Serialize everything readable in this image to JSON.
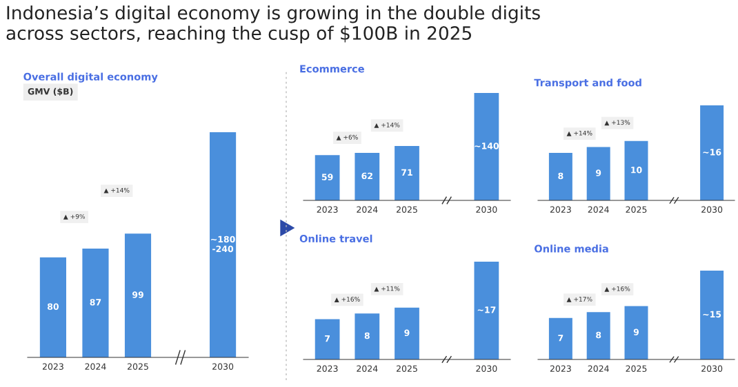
{
  "chart_data": [
    {
      "type": "other",
      "title": "Indonesia’s digital economy is growing in the double digits\nacross sectors, reaching the cusp of $100B in 2025"
    },
    {
      "type": "bar",
      "title": "Overall digital economy",
      "subtitle": "GMV ($B)",
      "tick_labels": "x",
      "color": "#4a8fdc",
      "categories": [
        "2023",
        "2024",
        "2025",
        null,
        "2030"
      ],
      "values": [
        80,
        87,
        99,
        null,
        180
      ],
      "value_labels": [
        "80",
        "87",
        "99",
        null,
        "~180\n-240"
      ],
      "annotations": [
        "▲ +9%",
        "▲ +14%"
      ]
    },
    {
      "type": "bar",
      "title": "Ecommerce",
      "tick_labels": "x",
      "color": "#4a8fdc",
      "categories": [
        "2023",
        "2024",
        "2025",
        null,
        "2030"
      ],
      "values": [
        59,
        62,
        71,
        null,
        140
      ],
      "value_labels": [
        "59",
        "62",
        "71",
        null,
        "~140"
      ],
      "annotations": [
        "▲ +6%",
        "▲ +14%"
      ]
    },
    {
      "type": "bar",
      "title": "Transport and food",
      "tick_labels": "x",
      "color": "#4a8fdc",
      "categories": [
        "2023",
        "2024",
        "2025",
        null,
        "2030"
      ],
      "values": [
        8,
        9,
        10,
        null,
        16
      ],
      "value_labels": [
        "8",
        "9",
        "10",
        null,
        "~16"
      ],
      "annotations": [
        "▲ +14%",
        "▲ +13%"
      ]
    },
    {
      "type": "bar",
      "title": "Online travel",
      "tick_labels": "x",
      "color": "#4a8fdc",
      "categories": [
        "2023",
        "2024",
        "2025",
        null,
        "2030"
      ],
      "values": [
        7,
        8,
        9,
        null,
        17
      ],
      "value_labels": [
        "7",
        "8",
        "9",
        null,
        "~17"
      ],
      "annotations": [
        "▲ +16%",
        "▲ +11%"
      ]
    },
    {
      "type": "bar",
      "title": "Online media",
      "tick_labels": "x",
      "color": "#4a8fdc",
      "categories": [
        "2023",
        "2024",
        "2025",
        null,
        "2030"
      ],
      "values": [
        7,
        8,
        9,
        null,
        15
      ],
      "value_labels": [
        "7",
        "8",
        "9",
        null,
        "~15"
      ],
      "annotations": [
        "▲ +17%",
        "▲ +16%"
      ]
    }
  ]
}
